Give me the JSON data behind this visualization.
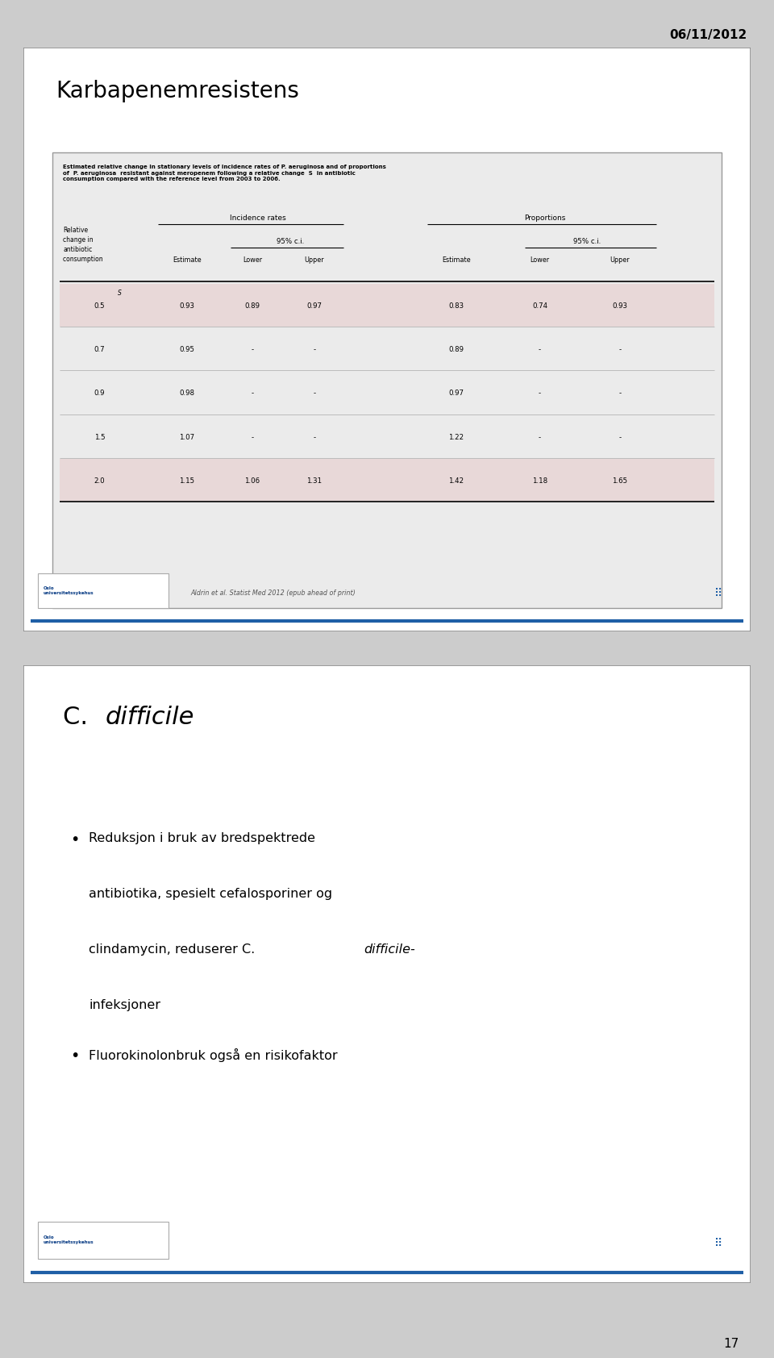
{
  "date_text": "06/11/2012",
  "page_number": "17",
  "slide1_title": "Karbapenemresistens",
  "caption_bold": "Estimated relative change in stationary levels of incidence rates of ",
  "caption_parts": [
    {
      "text": "Estimated relative change in stationary levels of incidence rates of ",
      "style": "bold"
    },
    {
      "text": "P. aeruginosa",
      "style": "bolditalic"
    },
    {
      "text": " and of proportions of ",
      "style": "bold"
    },
    {
      "text": "P. aeruginosa",
      "style": "bolditalic"
    },
    {
      "text": " resistant against meropenem following a relative change ",
      "style": "bold"
    },
    {
      "text": "S",
      "style": "bolditalic"
    },
    {
      "text": " in antibiotic consumption compared with the reference level from 2003 to 2006.",
      "style": "bold"
    }
  ],
  "col_headers_level1": [
    "Incidence rates",
    "Proportions"
  ],
  "col_headers_level2": [
    "95% c.i.",
    "95% c.i."
  ],
  "col_headers_level3": [
    "Estimate",
    "Lower",
    "Upper",
    "Estimate",
    "Lower",
    "Upper"
  ],
  "table_data": [
    [
      "0.5",
      "0.93",
      "0.89",
      "0.97",
      "0.83",
      "0.74",
      "0.93"
    ],
    [
      "0.7",
      "0.95",
      "-",
      "-",
      "0.89",
      "-",
      "-"
    ],
    [
      "0.9",
      "0.98",
      "-",
      "-",
      "0.97",
      "-",
      "-"
    ],
    [
      "1.5",
      "1.07",
      "-",
      "-",
      "1.22",
      "-",
      "-"
    ],
    [
      "2.0",
      "1.15",
      "1.06",
      "1.31",
      "1.42",
      "1.18",
      "1.65"
    ]
  ],
  "shaded_rows": [
    0,
    4
  ],
  "shade_color": "#e8d8d8",
  "footer_text": "Aldrin et al. Statist Med 2012 (epub ahead of print)",
  "slide2_title_parts": [
    {
      "text": "C. ",
      "style": "normal"
    },
    {
      "text": "difficile",
      "style": "italic"
    }
  ],
  "bullet1_parts": [
    {
      "text": "Reduksjon i bruk av bredspektrede antibiotika, spesielt cefalosporiner og\n    clindamycin, reduserer C. ",
      "style": "normal"
    },
    {
      "text": "difficile",
      "style": "italic"
    },
    {
      "text": "-\n    infeksjoner",
      "style": "normal"
    }
  ],
  "bullet2_text": "Fluorokinolonbruk også en risikofaktor",
  "oslo_logo_color": "#003580",
  "blue_line_color": "#1f5fa6"
}
